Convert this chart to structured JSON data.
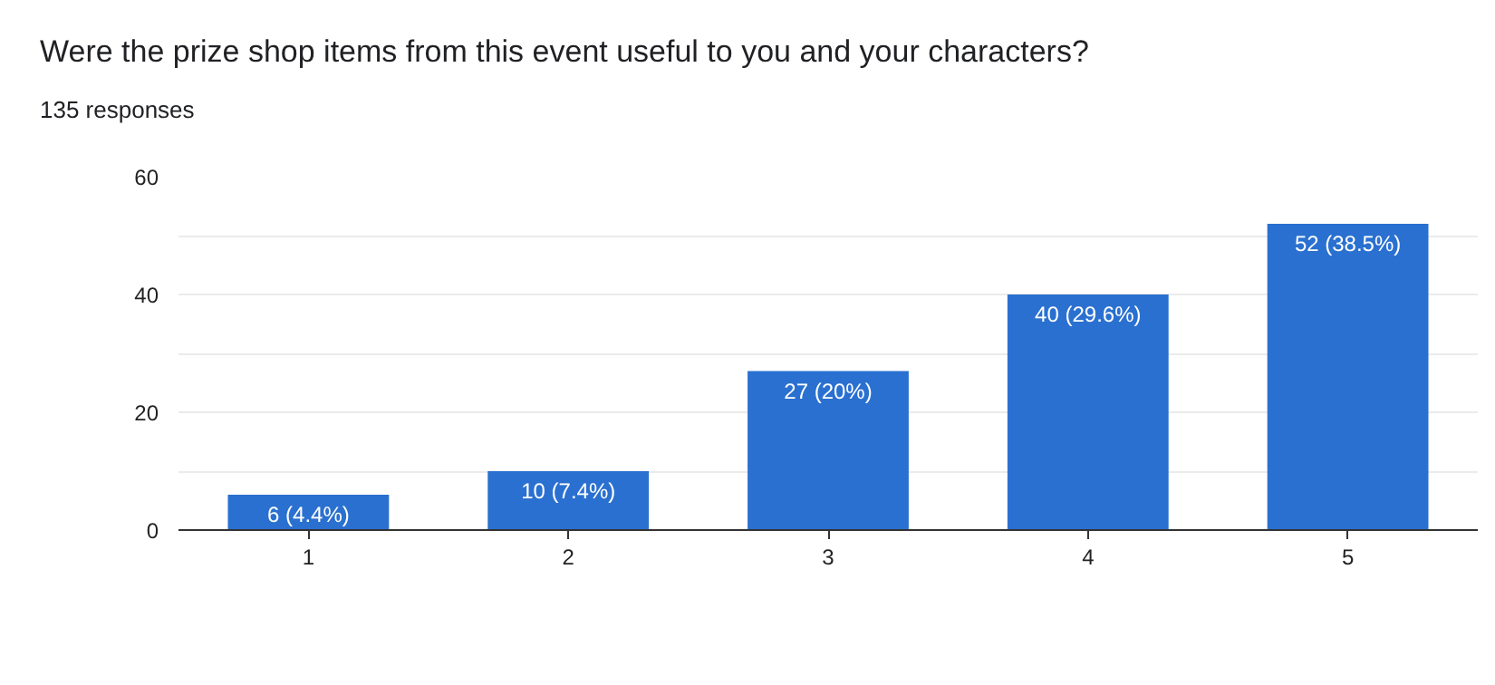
{
  "chart_data": {
    "type": "bar",
    "title": "Were the prize shop items from this event useful to you and your characters?",
    "subtitle": "135 responses",
    "categories": [
      "1",
      "2",
      "3",
      "4",
      "5"
    ],
    "values": [
      6,
      10,
      27,
      40,
      52
    ],
    "value_labels": [
      "6 (4.4%)",
      "10 (7.4%)",
      "27 (20%)",
      "40 (29.6%)",
      "52 (38.5%)"
    ],
    "color": "#2a70d0",
    "ylim": [
      0,
      60
    ],
    "yticks": [
      0,
      {
        "value": 10,
        "label": null
      },
      20,
      {
        "value": 30,
        "label": null
      },
      40,
      {
        "value": 50,
        "label": null
      },
      60
    ],
    "grid": "y"
  }
}
